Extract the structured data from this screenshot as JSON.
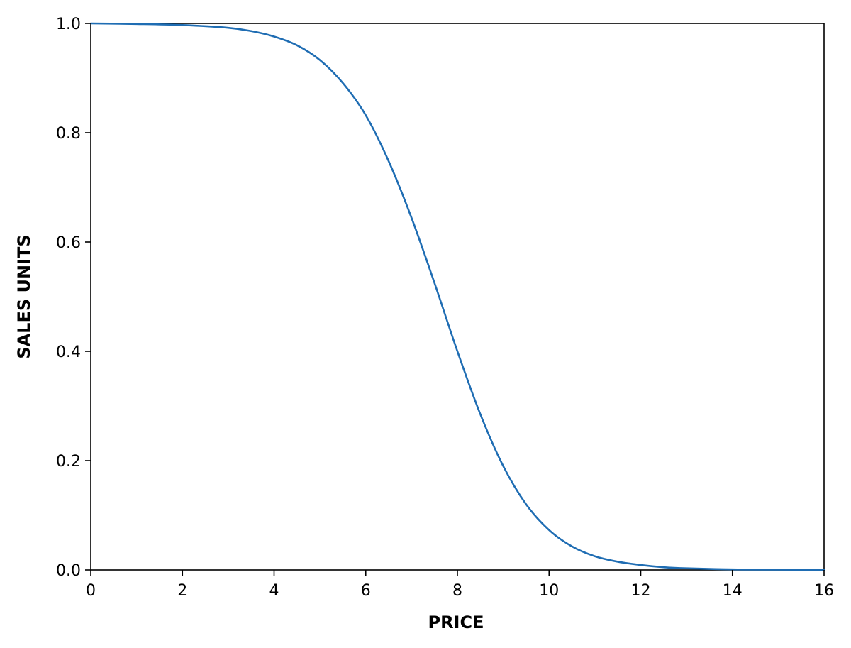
{
  "chart_data": {
    "type": "line",
    "title": "",
    "xlabel": "PRICE",
    "ylabel": "SALES UNITS",
    "xlim": [
      0,
      16
    ],
    "ylim": [
      0.0,
      1.0
    ],
    "xticks": [
      "0",
      "2",
      "4",
      "6",
      "8",
      "10",
      "12",
      "14",
      "16"
    ],
    "yticks": [
      "0.0",
      "0.2",
      "0.4",
      "0.6",
      "0.8",
      "1.0"
    ],
    "grid": false,
    "legend": "none",
    "series": [
      {
        "color": "#1f6db3",
        "x": [
          0,
          1,
          2,
          3,
          3.5,
          4,
          4.5,
          5,
          5.5,
          6,
          6.5,
          7,
          7.5,
          8,
          8.5,
          9,
          9.5,
          10,
          10.5,
          11,
          11.5,
          12,
          12.5,
          13,
          14,
          15,
          16
        ],
        "y": [
          1.0,
          0.999,
          0.997,
          0.992,
          0.986,
          0.976,
          0.96,
          0.933,
          0.891,
          0.832,
          0.748,
          0.644,
          0.525,
          0.4,
          0.285,
          0.19,
          0.12,
          0.073,
          0.043,
          0.025,
          0.015,
          0.009,
          0.005,
          0.003,
          0.001,
          0.0005,
          0.0002
        ]
      }
    ]
  }
}
